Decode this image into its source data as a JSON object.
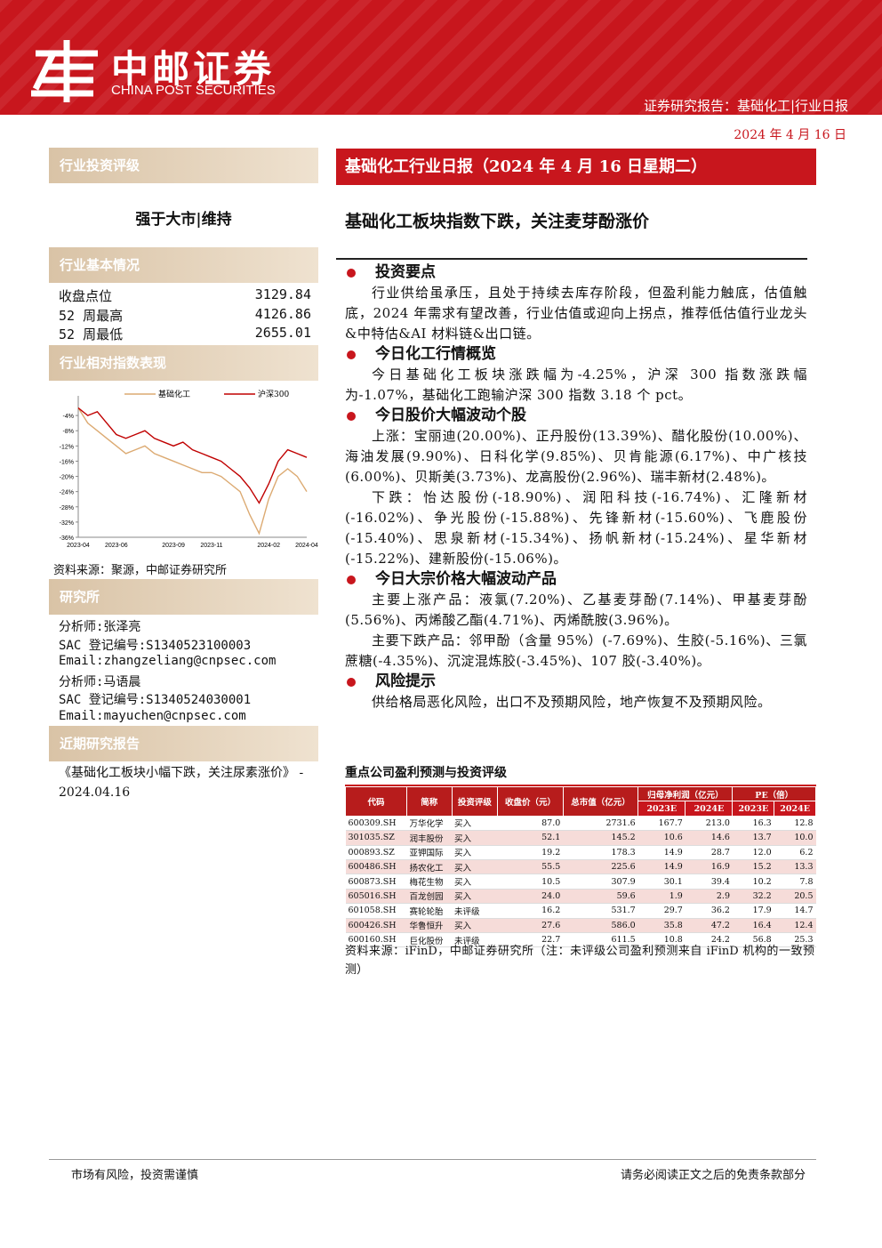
{
  "header": {
    "logo_cn": "中邮证券",
    "logo_en": "CHINA POST SECURITIES",
    "report_type": "证券研究报告：基础化工|行业日报",
    "date": "2024 年 4 月 16 日"
  },
  "sidebar": {
    "rating": {
      "heading": "行业投资评级",
      "value": "强于大市|维持"
    },
    "basics": {
      "heading": "行业基本情况",
      "rows": [
        [
          "收盘点位",
          "3129.84"
        ],
        [
          "52 周最高",
          "4126.86"
        ],
        [
          "52 周最低",
          "2655.01"
        ]
      ]
    },
    "chart_heading": "行业相对指数表现",
    "chart_source": "资料来源：聚源，中邮证券研究所",
    "analysts": {
      "heading": "研究所",
      "lines": [
        "分析师:张泽亮",
        "SAC 登记编号:S1340523100003",
        "Email:zhangzeliang@cnpsec.com",
        "分析师:马语晨",
        "SAC 登记编号:S1340524030001",
        "Email:mayuchen@cnpsec.com"
      ]
    },
    "recent": {
      "heading": "近期研究报告",
      "items": [
        "《基础化工板块小幅下跌，关注尿素涨价》 - 2024.04.16"
      ]
    }
  },
  "chart_data": {
    "type": "line",
    "categories": [
      "2023-04",
      null,
      null,
      null,
      "2023-06",
      null,
      null,
      null,
      null,
      null,
      "2023-09",
      null,
      null,
      null,
      "2023-11",
      null,
      null,
      null,
      null,
      null,
      "2024-02",
      null,
      null,
      null,
      "2024-04"
    ],
    "series": [
      {
        "name": "基础化工",
        "color": "#dcaa72",
        "values": [
          -2,
          -6,
          -8,
          -10,
          -12,
          -14,
          -13,
          -12,
          -14,
          -15,
          -16,
          -17,
          -18,
          -19,
          -19,
          -20,
          -22,
          -24,
          -30,
          -35,
          -26,
          -20,
          -18,
          -20,
          -24
        ]
      },
      {
        "name": "沪深300",
        "color": "#c00000",
        "values": [
          -2,
          -4,
          -3,
          -6,
          -9,
          -10,
          -9,
          -8,
          -10,
          -11,
          -12,
          -11,
          -13,
          -14,
          -15,
          -16,
          -18,
          -20,
          -23,
          -27,
          -22,
          -16,
          -13,
          -14,
          -15
        ]
      }
    ],
    "ylim": [
      -36,
      0
    ],
    "yticks": [
      {
        "value": -4,
        "label": "-4%"
      },
      {
        "value": -8,
        "label": "-8%"
      },
      {
        "value": -12,
        "label": "-12%"
      },
      {
        "value": -16,
        "label": "-16%"
      },
      {
        "value": -20,
        "label": "-20%"
      },
      {
        "value": -24,
        "label": "-24%"
      },
      {
        "value": -28,
        "label": "-28%"
      },
      {
        "value": -32,
        "label": "-32%"
      },
      {
        "value": -36,
        "label": "-36%"
      }
    ]
  },
  "main": {
    "title_bar": "基础化工行业日报（2024 年 4 月 16 日星期二）",
    "headline": "基础化工板块指数下跌，关注麦芽酚涨价",
    "sections": [
      {
        "heading": "投资要点",
        "paragraphs": [
          "行业供给虽承压，且处于持续去库存阶段，但盈利能力触底，估值触底，2024 年需求有望改善，行业估值或迎向上拐点，推荐低估值行业龙头&中特估&AI 材料链&出口链。"
        ]
      },
      {
        "heading": "今日化工行情概览",
        "paragraphs": [
          "今日基础化工板块涨跌幅为-4.25%，沪深 300 指数涨跌幅为-1.07%，基础化工跑输沪深 300 指数 3.18 个 pct。"
        ]
      },
      {
        "heading": "今日股价大幅波动个股",
        "paragraphs": [
          "上涨：宝丽迪(20.00%)、正丹股份(13.39%)、醋化股份(10.00%)、海油发展(9.90%)、日科化学(9.85%)、贝肯能源(6.17%)、中广核技(6.00%)、贝斯美(3.73%)、龙高股份(2.96%)、瑞丰新材(2.48%)。",
          "下跌：怡达股份(-18.90%)、润阳科技(-16.74%)、汇隆新材(-16.02%)、争光股份(-15.88%)、先锋新材(-15.60%)、飞鹿股份(-15.40%)、思泉新材(-15.34%)、扬帆新材(-15.24%)、星华新材(-15.22%)、建新股份(-15.06%)。"
        ]
      },
      {
        "heading": "今日大宗价格大幅波动产品",
        "paragraphs": [
          "主要上涨产品：液氯(7.20%)、乙基麦芽酚(7.14%)、甲基麦芽酚(5.56%)、丙烯酸乙酯(4.71%)、丙烯酰胺(3.96%)。",
          "主要下跌产品：邻甲酚（含量 95%）(-7.69%)、生胶(-5.16%)、三氯蔗糖(-4.35%)、沉淀混炼胶(-3.45%)、107 胶(-3.40%)。"
        ]
      },
      {
        "heading": "风险提示",
        "paragraphs": [
          "供给格局恶化风险，出口不及预期风险，地产恢复不及预期风险。"
        ]
      }
    ],
    "table": {
      "title": "重点公司盈利预测与投资评级",
      "headers": [
        "代码",
        "简称",
        "投资评级",
        "收盘价（元）",
        "总市值（亿元）",
        "归母净利润（亿元）",
        "PE（倍）"
      ],
      "subheaders": [
        "2023E",
        "2024E",
        "2023E",
        "2024E"
      ],
      "rows": [
        [
          "600309.SH",
          "万华化学",
          "买入",
          "87.0",
          "2731.6",
          "167.7",
          "213.0",
          "16.3",
          "12.8"
        ],
        [
          "301035.SZ",
          "润丰股份",
          "买入",
          "52.1",
          "145.2",
          "10.6",
          "14.6",
          "13.7",
          "10.0"
        ],
        [
          "000893.SZ",
          "亚钾国际",
          "买入",
          "19.2",
          "178.3",
          "14.9",
          "28.7",
          "12.0",
          "6.2"
        ],
        [
          "600486.SH",
          "扬农化工",
          "买入",
          "55.5",
          "225.6",
          "14.9",
          "16.9",
          "15.2",
          "13.3"
        ],
        [
          "600873.SH",
          "梅花生物",
          "买入",
          "10.5",
          "307.9",
          "30.1",
          "39.4",
          "10.2",
          "7.8"
        ],
        [
          "605016.SH",
          "百龙创园",
          "买入",
          "24.0",
          "59.6",
          "1.9",
          "2.9",
          "32.2",
          "20.5"
        ],
        [
          "601058.SH",
          "赛轮轮胎",
          "未评级",
          "16.2",
          "531.7",
          "29.7",
          "36.2",
          "17.9",
          "14.7"
        ],
        [
          "600426.SH",
          "华鲁恒升",
          "买入",
          "27.6",
          "586.0",
          "35.8",
          "47.2",
          "16.4",
          "12.4"
        ],
        [
          "600160.SH",
          "巨化股份",
          "未评级",
          "22.7",
          "611.5",
          "10.8",
          "24.2",
          "56.8",
          "25.3"
        ]
      ],
      "source": "资料来源：iFinD，中邮证券研究所（注：未评级公司盈利预测来自 iFinD 机构的一致预测）"
    }
  },
  "footer": {
    "left": "市场有风险，投资需谨慎",
    "right": "请务必阅读正文之后的免责条款部分"
  }
}
